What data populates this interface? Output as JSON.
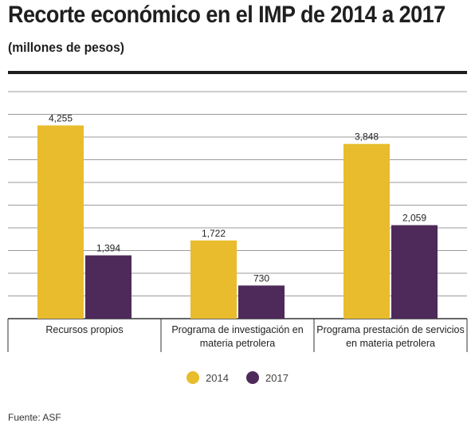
{
  "title": "Recorte económico en el IMP de 2014 a 2017",
  "subtitle": "(millones de pesos)",
  "source": "Fuente: ASF",
  "colors": {
    "2014": "#e8bc2c",
    "2017": "#4e2a5a"
  },
  "chart_data": {
    "type": "bar",
    "categories": [
      [
        "Recursos propios"
      ],
      [
        "Programa de investigación en",
        "materia petrolera"
      ],
      [
        "Programa prestación de servicios",
        "en materia petrolera"
      ]
    ],
    "series": [
      {
        "name": "2014",
        "values": [
          4255,
          1722,
          3848
        ],
        "labels": [
          "4,255",
          "1,722",
          "3,848"
        ]
      },
      {
        "name": "2017",
        "values": [
          1394,
          730,
          2059
        ],
        "labels": [
          "1,394",
          "730",
          "2,059"
        ]
      }
    ],
    "ylim": [
      0,
      5000
    ],
    "grid": true,
    "legend_position": "bottom"
  }
}
